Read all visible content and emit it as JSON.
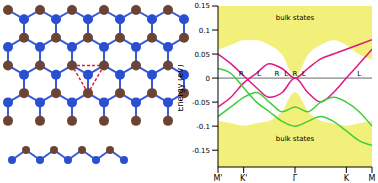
{
  "chart_data": {
    "type": "line",
    "y_label": "Energy (eV)",
    "x": [
      0,
      0.25,
      0.5,
      0.75,
      1,
      1.25,
      1.5,
      1.75,
      2,
      2.25,
      2.5,
      2.75,
      3
    ],
    "xlim": [
      0,
      3
    ],
    "xticks": [
      {
        "value": 0,
        "label": "M'"
      },
      {
        "value": 0.5,
        "label": "K'"
      },
      {
        "value": 1.5,
        "label": "Γ"
      },
      {
        "value": 2.5,
        "label": "K"
      },
      {
        "value": 3,
        "label": "M"
      }
    ],
    "ylim": [
      -0.185,
      0.15
    ],
    "yticks": [
      -0.15,
      -0.1,
      -0.05,
      0,
      0.05,
      0.1,
      0.15
    ],
    "hlines": [
      0
    ],
    "bulk_color": "#f2f07a",
    "bulk_upper_edge": [
      0.06,
      0.07,
      0.08,
      0.08,
      0.07,
      0.05,
      0.005,
      0.05,
      0.07,
      0.08,
      0.07,
      0.05,
      0.04
    ],
    "bulk_lower_edge": [
      -0.09,
      -0.095,
      -0.1,
      -0.095,
      -0.09,
      -0.07,
      -0.03,
      -0.07,
      -0.09,
      -0.095,
      -0.1,
      -0.095,
      -0.09
    ],
    "series": [
      {
        "color": "#e0187f",
        "values": [
          0.05,
          0.03,
          0.005,
          -0.02,
          -0.04,
          -0.03,
          0.0,
          -0.03,
          -0.05,
          -0.03,
          0.0,
          0.03,
          0.06
        ]
      },
      {
        "color": "#e0187f",
        "values": [
          -0.06,
          -0.04,
          -0.01,
          0.01,
          0.03,
          0.02,
          0.0,
          0.02,
          0.04,
          0.05,
          0.06,
          0.07,
          0.08
        ]
      },
      {
        "color": "#3ccf3c",
        "values": [
          -0.08,
          -0.06,
          -0.04,
          -0.03,
          -0.05,
          -0.07,
          -0.06,
          -0.07,
          -0.05,
          -0.04,
          -0.05,
          -0.07,
          -0.1
        ]
      },
      {
        "color": "#3ccf3c",
        "values": [
          0.02,
          0.01,
          -0.02,
          -0.05,
          -0.07,
          -0.09,
          -0.1,
          -0.09,
          -0.08,
          -0.09,
          -0.11,
          -0.13,
          -0.14
        ]
      }
    ],
    "annotations": [
      {
        "text": "bulk states",
        "x": 1.5,
        "y": 0.125
      },
      {
        "text": "bulk states",
        "x": 1.5,
        "y": -0.125
      },
      {
        "text": "R",
        "x": 0.45,
        "y": 0.01
      },
      {
        "text": "L",
        "x": 0.8,
        "y": 0.01
      },
      {
        "text": "R",
        "x": 1.15,
        "y": 0.01
      },
      {
        "text": "L",
        "x": 1.33,
        "y": 0.01
      },
      {
        "text": "R",
        "x": 1.5,
        "y": 0.01
      },
      {
        "text": "L",
        "x": 1.67,
        "y": 0.01
      },
      {
        "text": "L",
        "x": 2.75,
        "y": 0.01
      }
    ]
  }
}
